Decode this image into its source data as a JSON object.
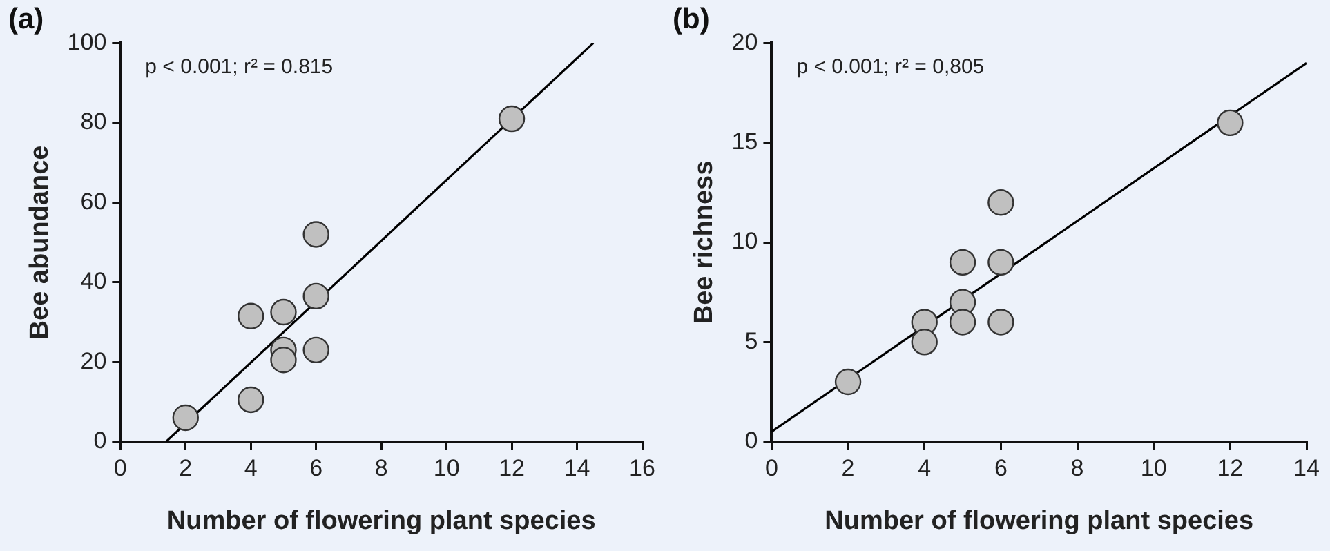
{
  "chart_data": [
    {
      "type": "scatter",
      "title": "(a)",
      "xlabel": "Number of flowering plant species",
      "ylabel": "Bee abundance",
      "annotations": [
        "p < 0.001; r² = 0.815"
      ],
      "marker": "circle",
      "xlim": [
        0,
        16
      ],
      "xticks": [
        0,
        2,
        4,
        6,
        8,
        10,
        12,
        14,
        16
      ],
      "ylim": [
        0,
        100
      ],
      "yticks": [
        0,
        20,
        40,
        60,
        80,
        100
      ],
      "series": [
        {
          "color": "#c0c0c0",
          "x": [
            2,
            4,
            4,
            5,
            5,
            5,
            6,
            6,
            6,
            12
          ],
          "values": [
            6,
            10.5,
            31.5,
            32.5,
            23,
            20.5,
            52,
            36.5,
            23,
            81
          ]
        },
        {
          "type": "line",
          "marker": "none",
          "color": "#000000",
          "x": [
            1.4,
            14.5
          ],
          "values": [
            0,
            100
          ]
        }
      ]
    },
    {
      "type": "scatter",
      "title": "(b)",
      "xlabel": "Number of flowering plant species",
      "ylabel": "Bee richness",
      "annotations": [
        "p < 0.001; r² = 0,805"
      ],
      "marker": "circle",
      "xlim": [
        0,
        14
      ],
      "xticks": [
        0,
        2,
        4,
        6,
        8,
        10,
        12,
        14
      ],
      "ylim": [
        0,
        20
      ],
      "yticks": [
        0,
        5,
        10,
        15,
        20
      ],
      "series": [
        {
          "color": "#c0c0c0",
          "x": [
            2,
            4,
            4,
            5,
            5,
            5,
            6,
            6,
            6,
            12
          ],
          "values": [
            3,
            6,
            5,
            9,
            7,
            6,
            12,
            9,
            6,
            16
          ]
        },
        {
          "type": "line",
          "marker": "none",
          "color": "#000000",
          "x": [
            0,
            14
          ],
          "values": [
            0.5,
            19
          ]
        }
      ]
    }
  ]
}
